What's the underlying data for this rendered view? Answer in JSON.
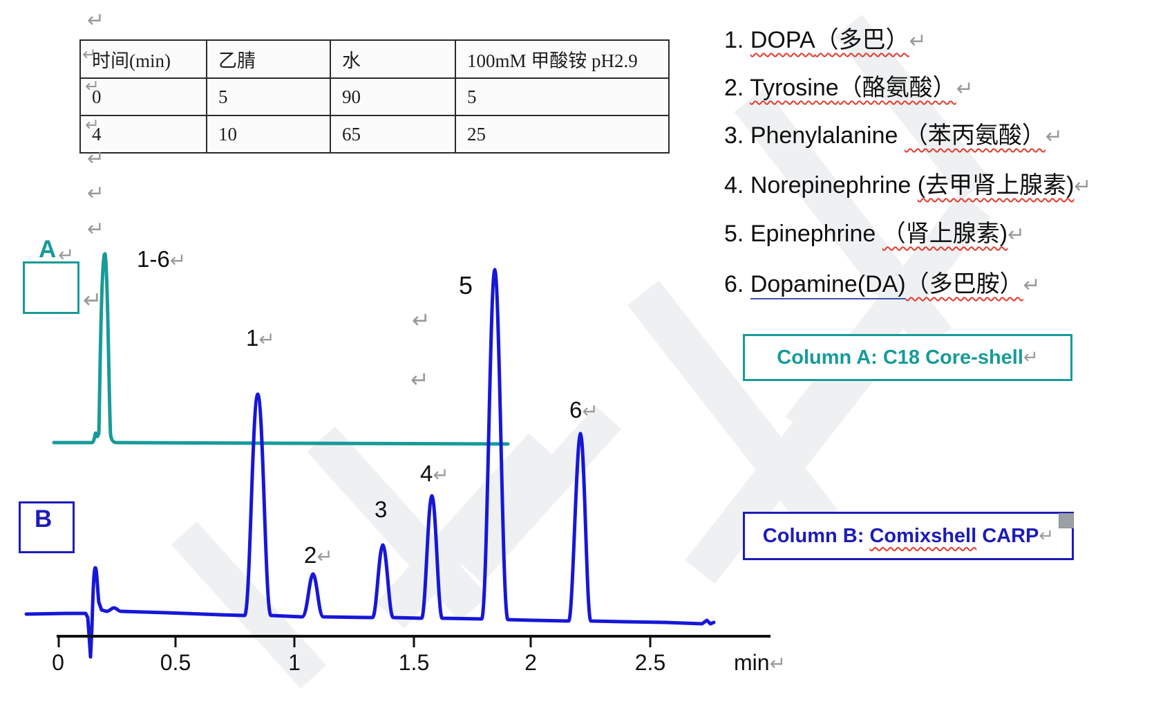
{
  "glyphs": {
    "return_arrow": "↵"
  },
  "gradient_table": {
    "headers": [
      "时间(min)",
      "乙腈",
      "水",
      "100mM 甲酸铵 pH2.9"
    ],
    "rows": [
      [
        "0",
        "5",
        "90",
        "5"
      ],
      [
        "4",
        "10",
        "65",
        "25"
      ]
    ]
  },
  "compound_list": {
    "items": [
      {
        "prefix": "1. ",
        "en": "DOPA",
        "cn": "（多巴）"
      },
      {
        "prefix": "2. ",
        "en": "Tyrosine",
        "cn": "（酪氨酸）"
      },
      {
        "prefix": "3. ",
        "en": "Phenylalanine ",
        "cn": "（苯丙氨酸）"
      },
      {
        "prefix": "4. ",
        "en": "Norepinephrine ",
        "cn": "(去甲肾上腺素)"
      },
      {
        "prefix": "5. ",
        "en": "Epinephrine ",
        "cn": "（肾上腺素)"
      },
      {
        "prefix": "6. ",
        "en": "Dopamine(DA)",
        "cn": "（多巴胺）"
      }
    ]
  },
  "panels": {
    "a": "A",
    "b": "B",
    "peak_group": "1-6"
  },
  "peak_labels": [
    "1",
    "2",
    "3",
    "4",
    "5",
    "6"
  ],
  "column_boxes": {
    "a": "Column A: C18 Core-shell",
    "b": "Column B: Comixshell CARP"
  },
  "axis": {
    "ticks": [
      "0",
      "0.5",
      "1",
      "1.5",
      "2",
      "2.5"
    ],
    "unit": "min"
  },
  "colors": {
    "teal": "#189a9a",
    "blue": "#1717d8",
    "navy": "#1c1cb8",
    "arrow_gray": "#9a9a9a",
    "squiggle_red": "#e23b2e"
  },
  "chart_data": {
    "type": "line",
    "title": "HPLC separation of 6 catecholamine-related compounds",
    "xlabel": "min",
    "xlim": [
      0,
      2.8
    ],
    "x_ticks": [
      0,
      0.5,
      1,
      1.5,
      2,
      2.5
    ],
    "grid": false,
    "series": [
      {
        "name": "Column A: C18 Core-shell",
        "color": "#189a9a",
        "peaks": [
          {
            "label": "1-6 (co-eluting)",
            "retention_min": 0.19,
            "relative_height": 1.0
          }
        ]
      },
      {
        "name": "Column B: Comixshell CARP",
        "color": "#1717d8",
        "peaks": [
          {
            "label": "solvent front",
            "retention_min": 0.15,
            "relative_height": 0.13
          },
          {
            "label": "1",
            "retention_min": 0.84,
            "relative_height": 0.63
          },
          {
            "label": "2",
            "retention_min": 1.07,
            "relative_height": 0.12
          },
          {
            "label": "3",
            "retention_min": 1.37,
            "relative_height": 0.21
          },
          {
            "label": "4",
            "retention_min": 1.57,
            "relative_height": 0.35
          },
          {
            "label": "5",
            "retention_min": 1.84,
            "relative_height": 1.0
          },
          {
            "label": "6",
            "retention_min": 2.2,
            "relative_height": 0.53
          }
        ]
      }
    ]
  }
}
